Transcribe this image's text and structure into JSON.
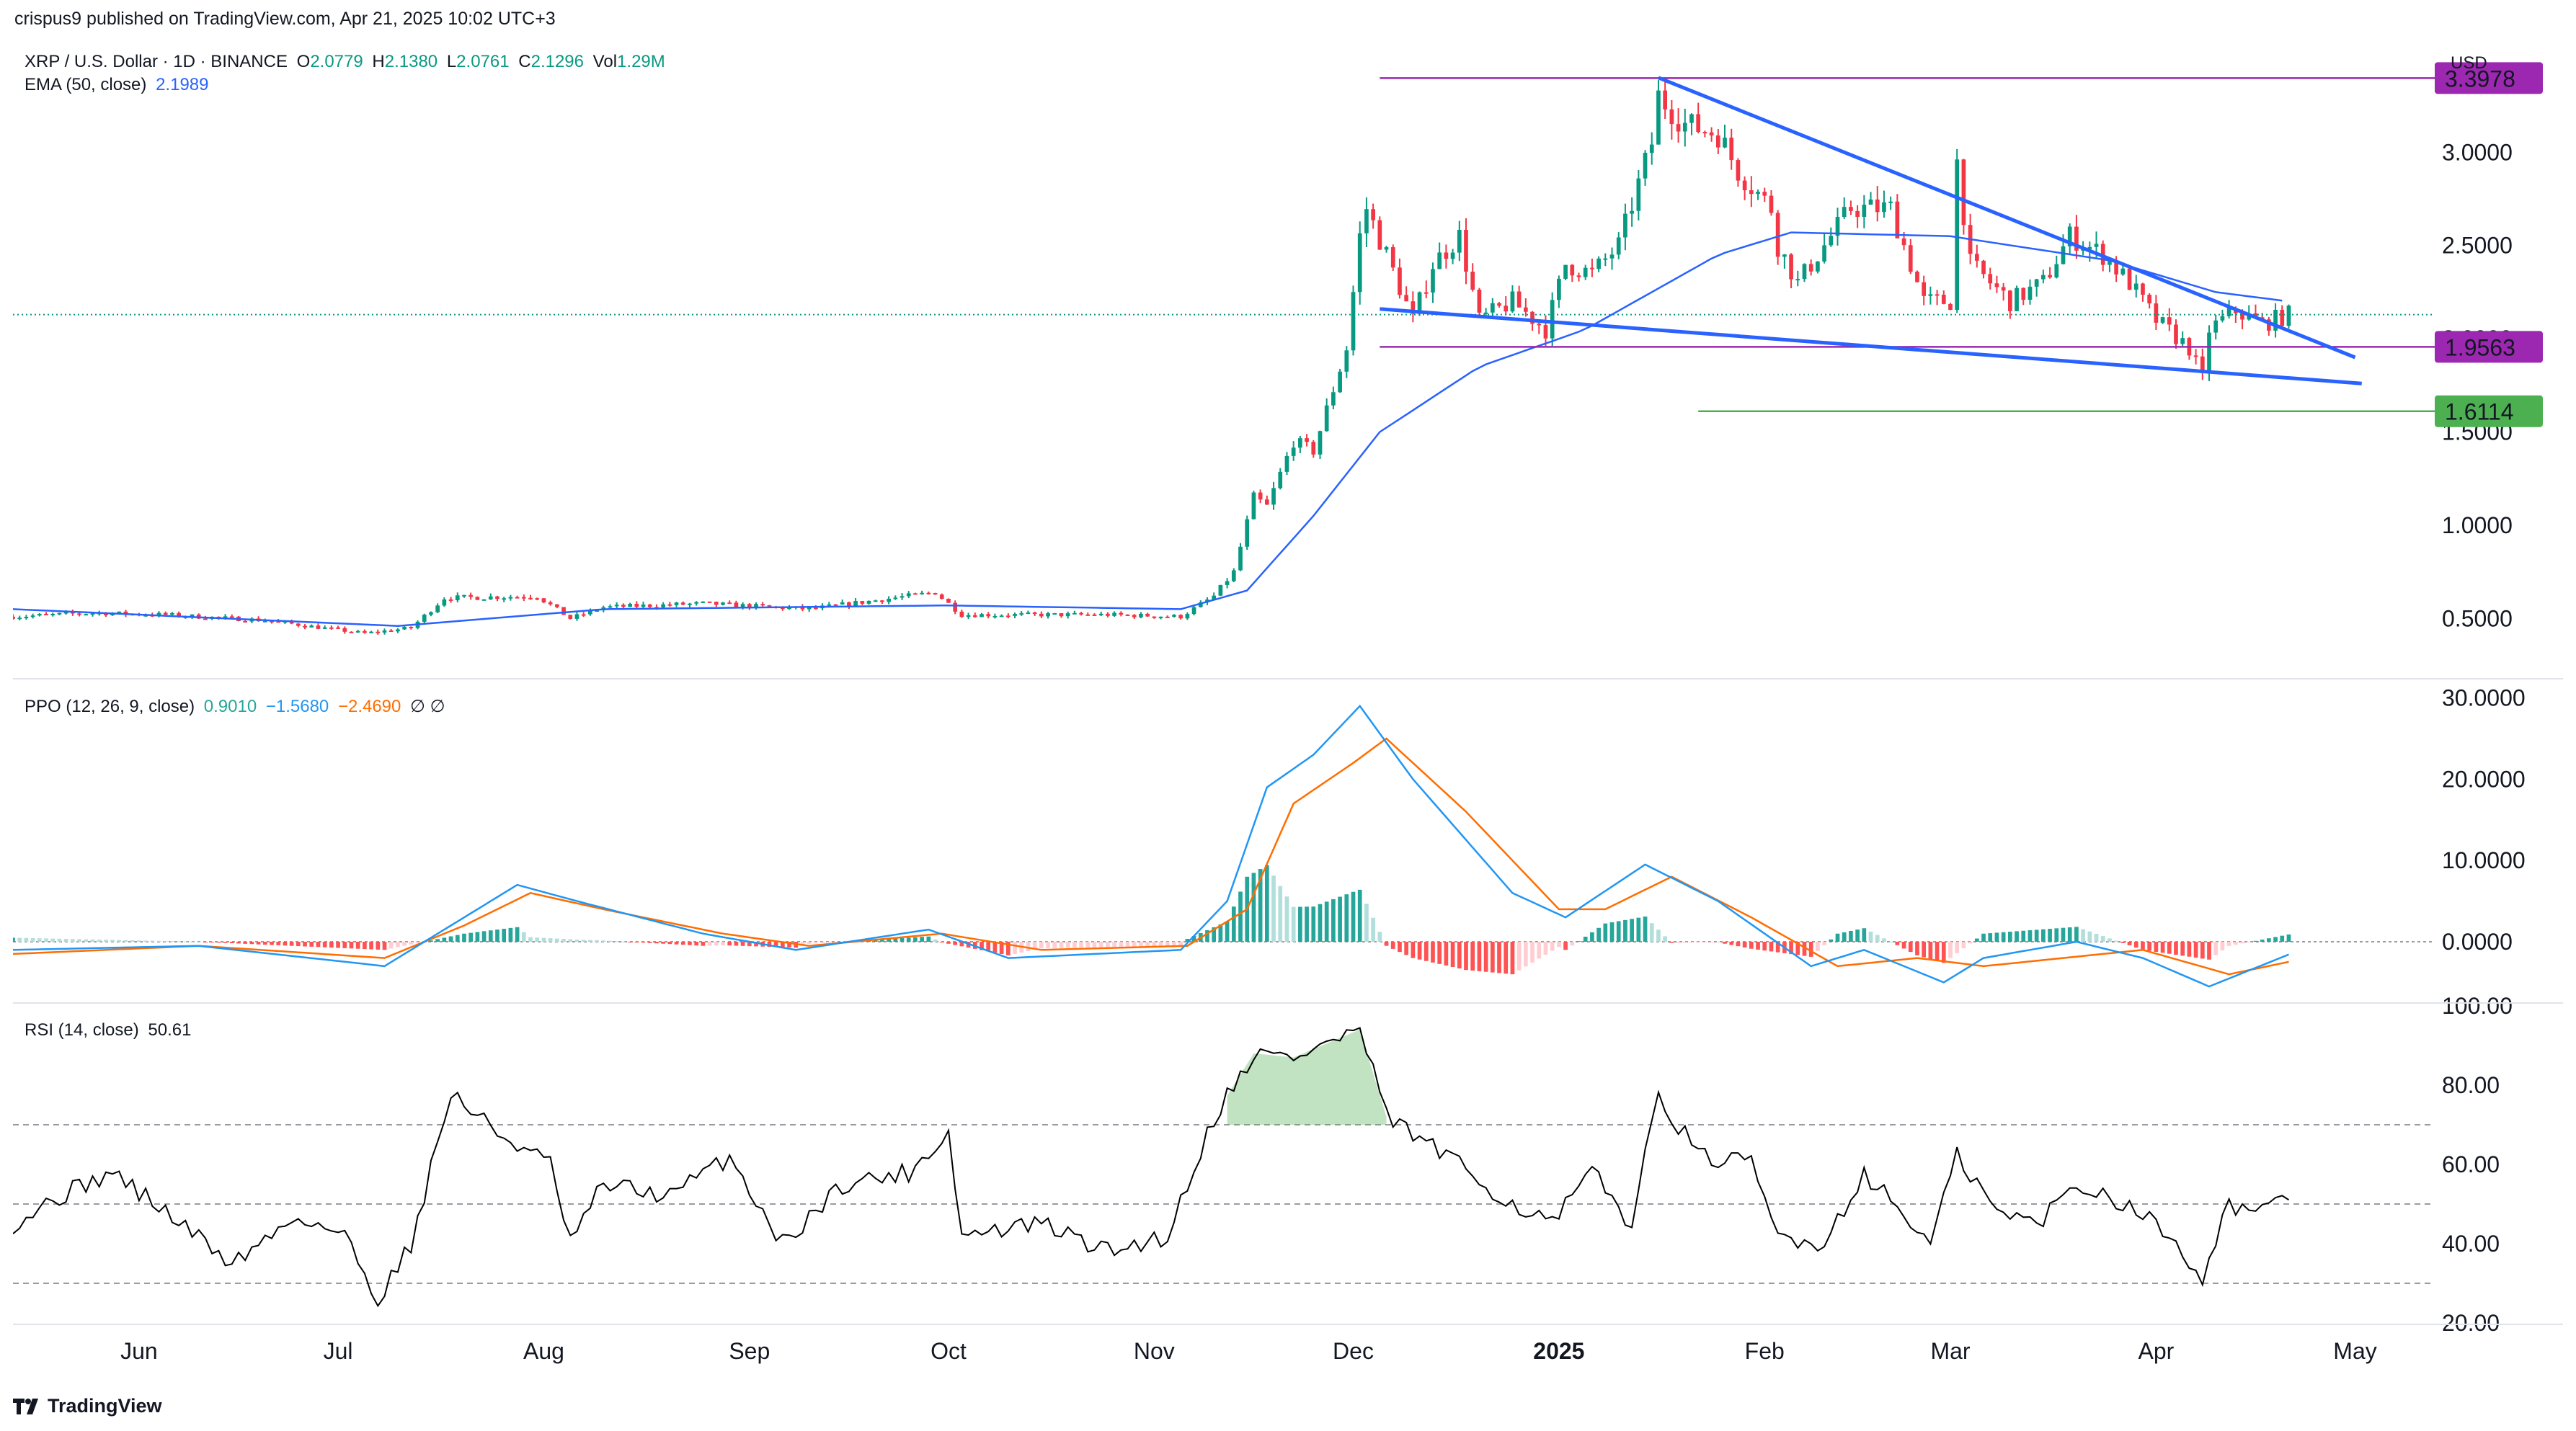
{
  "header": {
    "publisher": "crispus9 published on TradingView.com, Apr 21, 2025 10:02 UTC+3"
  },
  "price_pane": {
    "symbol": "XRP / U.S. Dollar · 1D · BINANCE",
    "o_label": "O",
    "o": "2.0779",
    "h_label": "H",
    "h": "2.1380",
    "l_label": "L",
    "l": "2.0761",
    "c_label": "C",
    "c": "2.1296",
    "vol_label": "Vol",
    "vol": "1.29",
    "vol_unit": "M",
    "ema_label": "EMA (50, close)",
    "ema_value": "2.1989",
    "currency": "USD",
    "tag_high": "3.3978",
    "tag_mid": "1.9563",
    "tag_low": "1.6114"
  },
  "ppo_pane": {
    "label": "PPO (12, 26, 9, close)",
    "v1": "0.9010",
    "v2": "−1.5680",
    "v3": "−2.4690",
    "sym": "∅ ∅"
  },
  "rsi_pane": {
    "label": "RSI (14, close)",
    "value": "50.61"
  },
  "footer": {
    "brand": "TradingView"
  },
  "colors": {
    "up": "#089981",
    "down": "#f23645",
    "ema": "#2962ff",
    "trend": "#2962ff",
    "magenta": "#9c27b0",
    "green_level": "#4caf50",
    "ppo_line": "#2196f3",
    "ppo_signal": "#ff6d00",
    "rsi_line": "#000000"
  },
  "chart_data": [
    {
      "type": "candlestick",
      "title": "XRP / U.S. Dollar · 1D · BINANCE",
      "ylabel": "USD",
      "ylim": [
        0.2,
        3.6
      ],
      "y_ticks": [
        "0.5000",
        "1.0000",
        "1.5000",
        "2.0000",
        "2.5000",
        "3.0000"
      ],
      "x_ticks": [
        "Jun",
        "Jul",
        "Aug",
        "Sep",
        "Oct",
        "Nov",
        "Dec",
        "2025",
        "Feb",
        "Mar",
        "Apr",
        "May"
      ],
      "x_range": [
        "2025-05-13 minus one year",
        "2025-05-13"
      ],
      "x_start": "2024-05-13",
      "x_end": "2025-05-13",
      "anchors": [
        [
          "2024-05-13",
          0.51
        ],
        [
          "2024-05-25",
          0.53
        ],
        [
          "2024-06-05",
          0.52
        ],
        [
          "2024-06-20",
          0.49
        ],
        [
          "2024-07-05",
          0.42
        ],
        [
          "2024-07-12",
          0.45
        ],
        [
          "2024-07-17",
          0.61
        ],
        [
          "2024-07-31",
          0.62
        ],
        [
          "2024-08-05",
          0.5
        ],
        [
          "2024-08-10",
          0.56
        ],
        [
          "2024-08-25",
          0.58
        ],
        [
          "2024-09-10",
          0.55
        ],
        [
          "2024-09-29",
          0.64
        ],
        [
          "2024-10-03",
          0.52
        ],
        [
          "2024-10-25",
          0.52
        ],
        [
          "2024-11-05",
          0.51
        ],
        [
          "2024-11-10",
          0.62
        ],
        [
          "2024-11-13",
          0.75
        ],
        [
          "2024-11-16",
          1.15
        ],
        [
          "2024-11-18",
          1.1
        ],
        [
          "2024-11-22",
          1.45
        ],
        [
          "2024-11-25",
          1.4
        ],
        [
          "2024-11-30",
          1.95
        ],
        [
          "2024-12-02",
          2.55
        ],
        [
          "2024-12-03",
          2.7
        ],
        [
          "2024-12-06",
          2.45
        ],
        [
          "2024-12-10",
          2.1
        ],
        [
          "2024-12-13",
          2.4
        ],
        [
          "2024-12-17",
          2.55
        ],
        [
          "2024-12-20",
          2.1
        ],
        [
          "2024-12-25",
          2.2
        ],
        [
          "2024-12-30",
          2.05
        ],
        [
          "2025-01-02",
          2.4
        ],
        [
          "2025-01-06",
          2.35
        ],
        [
          "2025-01-10",
          2.5
        ],
        [
          "2025-01-15",
          3.05
        ],
        [
          "2025-01-16",
          3.3
        ],
        [
          "2025-01-20",
          3.15
        ],
        [
          "2025-01-25",
          3.1
        ],
        [
          "2025-01-28",
          2.9
        ],
        [
          "2025-02-02",
          2.7
        ],
        [
          "2025-02-03",
          2.5
        ],
        [
          "2025-02-06",
          2.3
        ],
        [
          "2025-02-14",
          2.7
        ],
        [
          "2025-02-20",
          2.7
        ],
        [
          "2025-02-25",
          2.2
        ],
        [
          "2025-03-01",
          2.2
        ],
        [
          "2025-03-02",
          2.95
        ],
        [
          "2025-03-04",
          2.4
        ],
        [
          "2025-03-10",
          2.2
        ],
        [
          "2025-03-15",
          2.3
        ],
        [
          "2025-03-19",
          2.55
        ],
        [
          "2025-03-24",
          2.45
        ],
        [
          "2025-03-28",
          2.3
        ],
        [
          "2025-04-01",
          2.1
        ],
        [
          "2025-04-06",
          1.95
        ],
        [
          "2025-04-08",
          1.78
        ],
        [
          "2025-04-09",
          2.05
        ],
        [
          "2025-04-13",
          2.15
        ],
        [
          "2025-04-17",
          2.08
        ],
        [
          "2025-04-21",
          2.13
        ]
      ],
      "ema_anchors": [
        [
          "2024-05-13",
          0.55
        ],
        [
          "2024-07-10",
          0.46
        ],
        [
          "2024-08-10",
          0.55
        ],
        [
          "2024-10-01",
          0.57
        ],
        [
          "2024-11-05",
          0.55
        ],
        [
          "2024-11-15",
          0.65
        ],
        [
          "2024-11-25",
          1.05
        ],
        [
          "2024-12-05",
          1.5
        ],
        [
          "2024-12-20",
          1.85
        ],
        [
          "2025-01-05",
          2.05
        ],
        [
          "2025-01-25",
          2.45
        ],
        [
          "2025-02-05",
          2.57
        ],
        [
          "2025-03-01",
          2.55
        ],
        [
          "2025-03-25",
          2.42
        ],
        [
          "2025-04-10",
          2.25
        ],
        [
          "2025-04-21",
          2.2
        ]
      ],
      "levels": [
        {
          "label": "3.3978",
          "value": 3.3978,
          "from": "2024-12-05",
          "color": "magenta"
        },
        {
          "label": "1.9563",
          "value": 1.9563,
          "from": "2024-12-05",
          "color": "magenta"
        },
        {
          "label": "1.6114",
          "value": 1.6114,
          "from": "2025-01-22",
          "color": "green_level"
        }
      ],
      "trendlines": [
        {
          "from": [
            "2025-01-16",
            3.4
          ],
          "to": [
            "2025-05-01",
            1.9
          ]
        },
        {
          "from": [
            "2024-12-05",
            2.16
          ],
          "to": [
            "2025-05-02",
            1.76
          ]
        }
      ],
      "current_price": 2.1296
    },
    {
      "type": "line",
      "title": "PPO (12, 26, 9, close)",
      "ylim": [
        -7,
        32
      ],
      "y_ticks": [
        "0.0000",
        "10.0000",
        "20.0000",
        "30.0000"
      ],
      "series": [
        {
          "name": "PPO",
          "anchors": [
            [
              "2024-05-13",
              -1
            ],
            [
              "2024-06-10",
              -0.5
            ],
            [
              "2024-07-08",
              -3
            ],
            [
              "2024-07-20",
              3
            ],
            [
              "2024-07-28",
              7
            ],
            [
              "2024-08-06",
              5
            ],
            [
              "2024-08-25",
              1
            ],
            [
              "2024-09-08",
              -1
            ],
            [
              "2024-09-28",
              1.5
            ],
            [
              "2024-10-10",
              -2
            ],
            [
              "2024-11-05",
              -1
            ],
            [
              "2024-11-12",
              5
            ],
            [
              "2024-11-18",
              19
            ],
            [
              "2024-11-25",
              23
            ],
            [
              "2024-12-02",
              29
            ],
            [
              "2024-12-10",
              20
            ],
            [
              "2024-12-25",
              6
            ],
            [
              "2025-01-02",
              3
            ],
            [
              "2025-01-14",
              9.5
            ],
            [
              "2025-01-25",
              5
            ],
            [
              "2025-02-08",
              -3
            ],
            [
              "2025-02-16",
              -1
            ],
            [
              "2025-02-28",
              -5
            ],
            [
              "2025-03-06",
              -2
            ],
            [
              "2025-03-20",
              0
            ],
            [
              "2025-03-30",
              -2
            ],
            [
              "2025-04-09",
              -5.5
            ],
            [
              "2025-04-21",
              -1.57
            ]
          ]
        },
        {
          "name": "Signal",
          "anchors": [
            [
              "2024-05-13",
              -1.5
            ],
            [
              "2024-06-10",
              -0.5
            ],
            [
              "2024-07-08",
              -2
            ],
            [
              "2024-07-20",
              2
            ],
            [
              "2024-07-30",
              6
            ],
            [
              "2024-08-10",
              4
            ],
            [
              "2024-08-28",
              1
            ],
            [
              "2024-09-10",
              -0.5
            ],
            [
              "2024-09-30",
              1
            ],
            [
              "2024-10-15",
              -1
            ],
            [
              "2024-11-06",
              -0.5
            ],
            [
              "2024-11-15",
              4
            ],
            [
              "2024-11-22",
              17
            ],
            [
              "2024-12-01",
              22
            ],
            [
              "2024-12-06",
              25
            ],
            [
              "2024-12-18",
              16
            ],
            [
              "2025-01-01",
              4
            ],
            [
              "2025-01-08",
              4
            ],
            [
              "2025-01-18",
              8
            ],
            [
              "2025-01-30",
              3
            ],
            [
              "2025-02-12",
              -3
            ],
            [
              "2025-02-24",
              -2
            ],
            [
              "2025-03-06",
              -3
            ],
            [
              "2025-03-18",
              -2
            ],
            [
              "2025-03-30",
              -1
            ],
            [
              "2025-04-12",
              -4
            ],
            [
              "2025-04-21",
              -2.47
            ]
          ]
        }
      ],
      "histogram": "PPO minus Signal"
    },
    {
      "type": "line",
      "title": "RSI (14, close)",
      "ylim": [
        20,
        100
      ],
      "y_ticks": [
        "20.00",
        "40.00",
        "60.00",
        "80.00",
        "100.00"
      ],
      "bands": [
        30,
        50,
        70
      ],
      "series": [
        {
          "name": "RSI",
          "anchors": [
            [
              "2024-05-13",
              45
            ],
            [
              "2024-05-20",
              52
            ],
            [
              "2024-05-28",
              58
            ],
            [
              "2024-06-05",
              48
            ],
            [
              "2024-06-15",
              35
            ],
            [
              "2024-06-25",
              47
            ],
            [
              "2024-07-02",
              42
            ],
            [
              "2024-07-07",
              26
            ],
            [
              "2024-07-12",
              40
            ],
            [
              "2024-07-18",
              78
            ],
            [
              "2024-07-25",
              68
            ],
            [
              "2024-08-02",
              60
            ],
            [
              "2024-08-05",
              40
            ],
            [
              "2024-08-10",
              55
            ],
            [
              "2024-08-20",
              52
            ],
            [
              "2024-08-29",
              62
            ],
            [
              "2024-09-06",
              40
            ],
            [
              "2024-09-15",
              55
            ],
            [
              "2024-09-25",
              58
            ],
            [
              "2024-10-01",
              68
            ],
            [
              "2024-10-03",
              42
            ],
            [
              "2024-10-15",
              45
            ],
            [
              "2024-10-25",
              38
            ],
            [
              "2024-11-03",
              42
            ],
            [
              "2024-11-10",
              72
            ],
            [
              "2024-11-16",
              88
            ],
            [
              "2024-11-22",
              87
            ],
            [
              "2024-12-02",
              94
            ],
            [
              "2024-12-06",
              72
            ],
            [
              "2024-12-15",
              62
            ],
            [
              "2024-12-25",
              50
            ],
            [
              "2024-12-31",
              45
            ],
            [
              "2025-01-06",
              58
            ],
            [
              "2025-01-12",
              45
            ],
            [
              "2025-01-16",
              78
            ],
            [
              "2025-01-22",
              62
            ],
            [
              "2025-01-30",
              60
            ],
            [
              "2025-02-03",
              42
            ],
            [
              "2025-02-10",
              40
            ],
            [
              "2025-02-16",
              58
            ],
            [
              "2025-02-26",
              40
            ],
            [
              "2025-03-02",
              62
            ],
            [
              "2025-03-08",
              48
            ],
            [
              "2025-03-14",
              45
            ],
            [
              "2025-03-20",
              55
            ],
            [
              "2025-03-28",
              50
            ],
            [
              "2025-04-03",
              42
            ],
            [
              "2025-04-08",
              32
            ],
            [
              "2025-04-12",
              50
            ],
            [
              "2025-04-17",
              48
            ],
            [
              "2025-04-21",
              50.61
            ]
          ]
        }
      ]
    }
  ]
}
